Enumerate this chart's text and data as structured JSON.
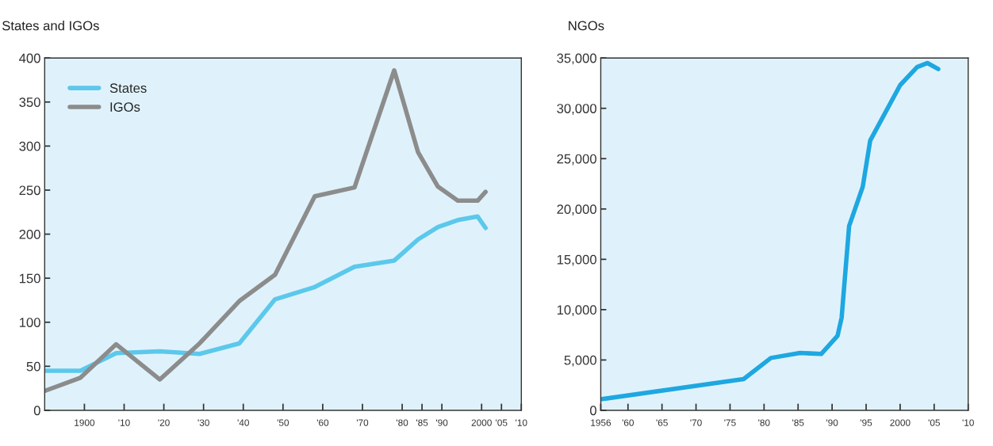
{
  "chart_data": [
    {
      "type": "line",
      "title": "States and IGOs",
      "xlim": [
        1890,
        2010
      ],
      "ylim": [
        0,
        400
      ],
      "xticks": [
        {
          "value": 1900,
          "label": "1900"
        },
        {
          "value": 1910,
          "label": "'10"
        },
        {
          "value": 1920,
          "label": "'20"
        },
        {
          "value": 1930,
          "label": "'30"
        },
        {
          "value": 1940,
          "label": "'40"
        },
        {
          "value": 1950,
          "label": "'50"
        },
        {
          "value": 1960,
          "label": "'60"
        },
        {
          "value": 1970,
          "label": "'70"
        },
        {
          "value": 1980,
          "label": "'80"
        },
        {
          "value": 1985,
          "label": "'85"
        },
        {
          "value": 1990,
          "label": "'90"
        },
        {
          "value": 2000,
          "label": "2000"
        },
        {
          "value": 2005,
          "label": "'05"
        },
        {
          "value": 2010,
          "label": "'10"
        }
      ],
      "yticks": [
        0,
        50,
        100,
        150,
        200,
        250,
        300,
        350,
        400
      ],
      "grid": false,
      "legend": "top left",
      "series": [
        {
          "name": "States",
          "color": "#5bc8ec",
          "x": [
            1890,
            1899,
            1908,
            1919,
            1929,
            1939,
            1948,
            1958,
            1968,
            1978,
            1984,
            1989,
            1994,
            1999,
            2001
          ],
          "values": [
            45,
            45,
            65,
            67,
            64,
            76,
            126,
            140,
            163,
            170,
            194,
            208,
            216,
            220,
            207
          ]
        },
        {
          "name": "IGOs",
          "color": "#8c8c8c",
          "x": [
            1890,
            1899,
            1908,
            1919,
            1929,
            1939,
            1948,
            1958,
            1968,
            1978,
            1984,
            1989,
            1994,
            1999,
            2001
          ],
          "values": [
            22,
            37,
            75,
            35,
            76,
            124,
            154,
            243,
            253,
            386,
            293,
            254,
            238,
            238,
            248
          ]
        }
      ]
    },
    {
      "type": "line",
      "title": "NGOs",
      "xlim": [
        1956,
        2010
      ],
      "ylim": [
        0,
        35000
      ],
      "xticks": [
        {
          "value": 1956,
          "label": "1956"
        },
        {
          "value": 1960,
          "label": "'60"
        },
        {
          "value": 1965,
          "label": "'65"
        },
        {
          "value": 1970,
          "label": "'70"
        },
        {
          "value": 1975,
          "label": "'75"
        },
        {
          "value": 1980,
          "label": "'80"
        },
        {
          "value": 1985,
          "label": "'85"
        },
        {
          "value": 1990,
          "label": "'90"
        },
        {
          "value": 1995,
          "label": "'95"
        },
        {
          "value": 2000,
          "label": "2000"
        },
        {
          "value": 2005,
          "label": "'05"
        },
        {
          "value": 2010,
          "label": "'10"
        }
      ],
      "yticks": [
        {
          "value": 0,
          "label": "0"
        },
        {
          "value": 5000,
          "label": "5,000"
        },
        {
          "value": 10000,
          "label": "10,000"
        },
        {
          "value": 15000,
          "label": "15,000"
        },
        {
          "value": 20000,
          "label": "20,000"
        },
        {
          "value": 25000,
          "label": "25,000"
        },
        {
          "value": 30000,
          "label": "30,000"
        },
        {
          "value": 35000,
          "label": "35,000"
        }
      ],
      "grid": false,
      "legend": false,
      "series": [
        {
          "color": "#1ea7e1",
          "x": [
            1956,
            1977,
            1981,
            1985.3,
            1988.4,
            1990.8,
            1991.4,
            1992.5,
            1994.5,
            1995.6,
            2000,
            2002.5,
            2004,
            2005.6
          ],
          "values": [
            1100,
            3100,
            5200,
            5700,
            5600,
            7400,
            9200,
            18300,
            22200,
            26800,
            32300,
            34100,
            34500,
            33900
          ]
        }
      ]
    }
  ]
}
